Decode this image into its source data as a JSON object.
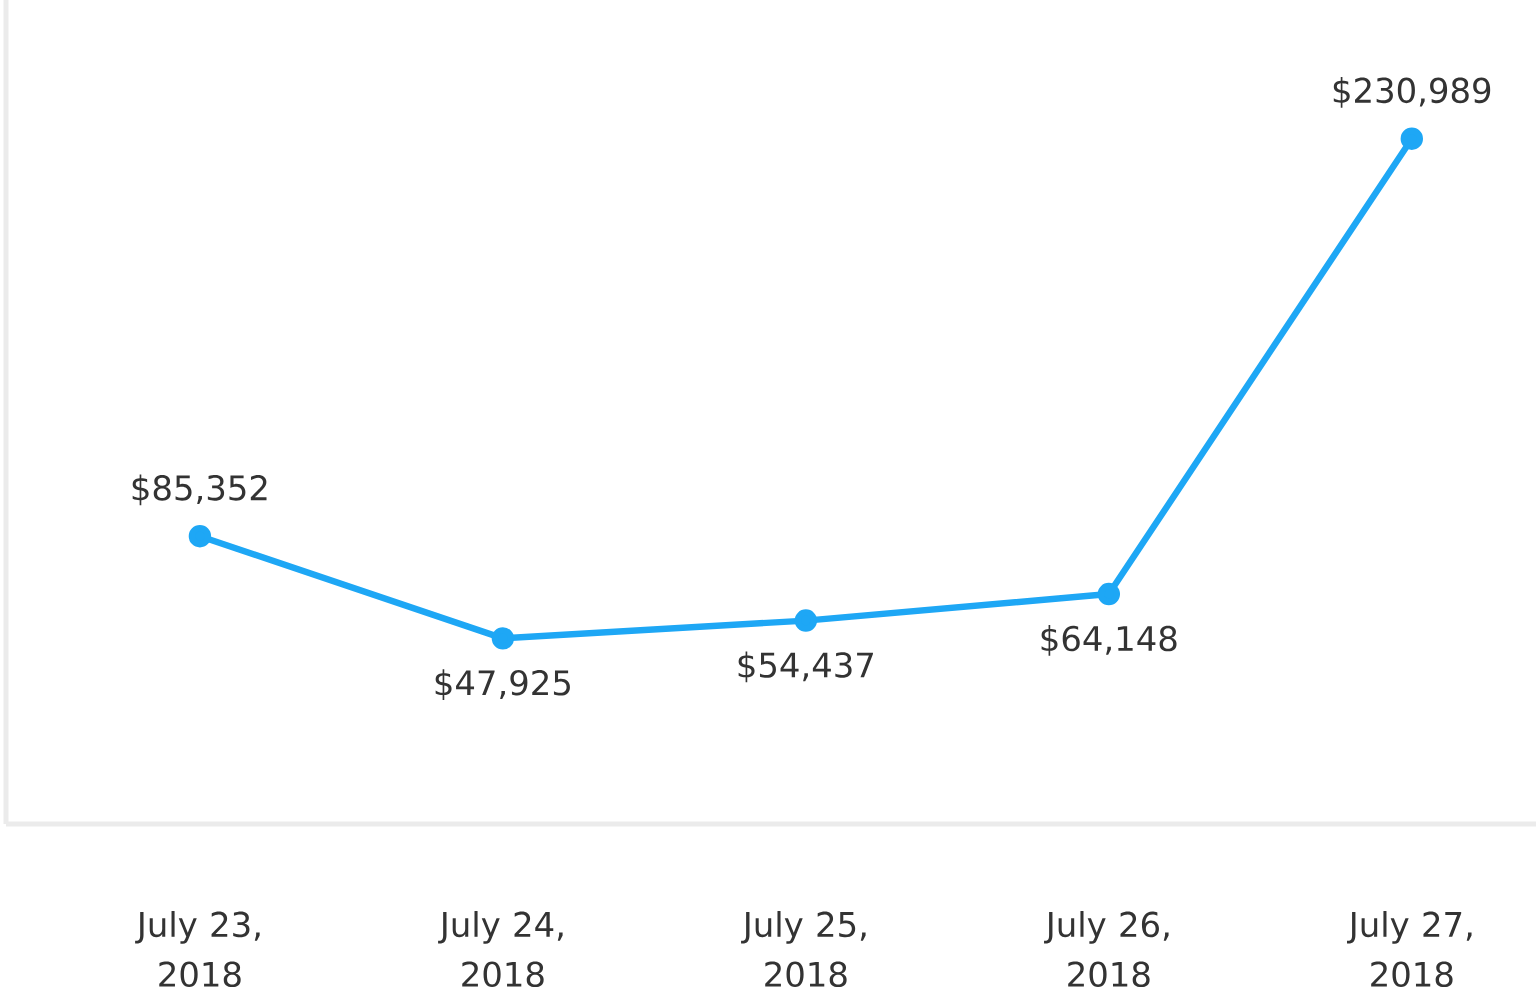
{
  "chart_data": {
    "type": "line",
    "categories": [
      "July 23, 2018",
      "July 24, 2018",
      "July 25, 2018",
      "July 26, 2018",
      "July 27, 2018"
    ],
    "series": [
      {
        "color": "#1ea7f5",
        "values": [
          85352,
          47925,
          54437,
          64148,
          230989
        ],
        "value_labels": [
          "$85,352",
          "$47,925",
          "$54,437",
          "$64,148",
          "$230,989"
        ]
      }
    ],
    "marker": "circle",
    "line_style": "solid",
    "tick_labels": "x"
  }
}
